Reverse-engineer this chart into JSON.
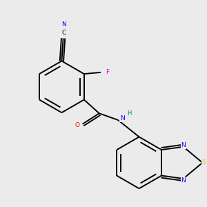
{
  "background_color": "#ebebeb",
  "bond_color": "#000000",
  "atom_colors": {
    "N": "#0000ff",
    "O": "#ff0000",
    "F": "#ff00cc",
    "S": "#cccc00",
    "C": "#000000",
    "H": "#008080"
  },
  "figsize": [
    3.0,
    3.0
  ],
  "dpi": 100
}
